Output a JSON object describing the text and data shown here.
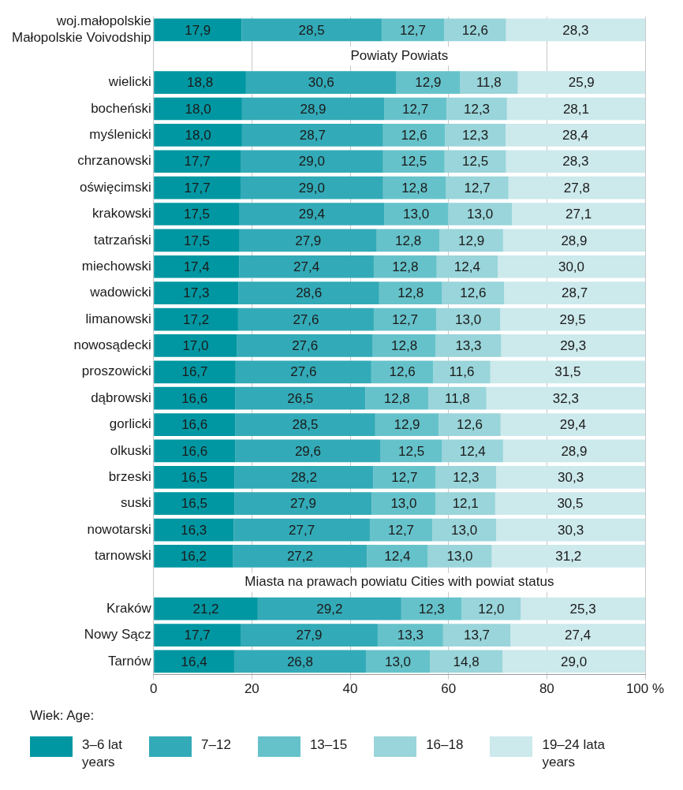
{
  "chart_data": {
    "type": "bar",
    "orientation": "horizontal",
    "stacked": true,
    "categories": [
      "woj.małopolskie\nMałopolskie Voivodship",
      null,
      "wielicki",
      "bocheński",
      "myślenicki",
      "chrzanowski",
      "oświęcimski",
      "krakowski",
      "tatrzański",
      "miechowski",
      "wadowicki",
      "limanowski",
      "nowosądecki",
      "proszowicki",
      "dąbrowski",
      "gorlicki",
      "olkuski",
      "brzeski",
      "suski",
      "nowotarski",
      "tarnowski",
      null,
      "Kraków",
      "Nowy Sącz",
      "Tarnów"
    ],
    "series": [
      {
        "name": "3–6 lat\nyears",
        "color": "#0097a2",
        "values": [
          17.9,
          null,
          18.8,
          18.0,
          18.0,
          17.7,
          17.7,
          17.5,
          17.5,
          17.4,
          17.3,
          17.2,
          17.0,
          16.7,
          16.6,
          16.6,
          16.6,
          16.5,
          16.5,
          16.3,
          16.2,
          null,
          21.2,
          17.7,
          16.4
        ],
        "value_labels": [
          "17,9",
          null,
          "18,8",
          "18,0",
          "18,0",
          "17,7",
          "17,7",
          "17,5",
          "17,5",
          "17,4",
          "17,3",
          "17,2",
          "17,0",
          "16,7",
          "16,6",
          "16,6",
          "16,6",
          "16,5",
          "16,5",
          "16,3",
          "16,2",
          null,
          "21,2",
          "17,7",
          "16,4"
        ]
      },
      {
        "name": "7–12",
        "color": "#33aab7",
        "values": [
          28.5,
          null,
          30.6,
          28.9,
          28.7,
          29.0,
          29.0,
          29.4,
          27.9,
          27.4,
          28.6,
          27.6,
          27.6,
          27.6,
          26.5,
          28.5,
          29.6,
          28.2,
          27.9,
          27.7,
          27.2,
          null,
          29.2,
          27.9,
          26.8
        ],
        "value_labels": [
          "28,5",
          null,
          "30,6",
          "28,9",
          "28,7",
          "29,0",
          "29,0",
          "29,4",
          "27,9",
          "27,4",
          "28,6",
          "27,6",
          "27,6",
          "27,6",
          "26,5",
          "28,5",
          "29,6",
          "28,2",
          "27,9",
          "27,7",
          "27,2",
          null,
          "29,2",
          "27,9",
          "26,8"
        ]
      },
      {
        "name": "13–15",
        "color": "#66c2ca",
        "values": [
          12.7,
          null,
          12.9,
          12.7,
          12.6,
          12.5,
          12.8,
          13.0,
          12.8,
          12.8,
          12.8,
          12.7,
          12.8,
          12.6,
          12.8,
          12.9,
          12.5,
          12.7,
          13.0,
          12.7,
          12.4,
          null,
          12.3,
          13.3,
          13.0
        ],
        "value_labels": [
          "12,7",
          null,
          "12,9",
          "12,7",
          "12,6",
          "12,5",
          "12,8",
          "13,0",
          "12,8",
          "12,8",
          "12,8",
          "12,7",
          "12,8",
          "12,6",
          "12,8",
          "12,9",
          "12,5",
          "12,7",
          "13,0",
          "12,7",
          "12,4",
          null,
          "12,3",
          "13,3",
          "13,0"
        ]
      },
      {
        "name": "16–18",
        "color": "#99d5da",
        "values": [
          12.6,
          null,
          11.8,
          12.3,
          12.3,
          12.5,
          12.7,
          13.0,
          12.9,
          12.4,
          12.6,
          13.0,
          13.3,
          11.6,
          11.8,
          12.6,
          12.4,
          12.3,
          12.1,
          13.0,
          13.0,
          null,
          12.0,
          13.7,
          14.8
        ],
        "value_labels": [
          "12,6",
          null,
          "11,8",
          "12,3",
          "12,3",
          "12,5",
          "12,7",
          "13,0",
          "12,9",
          "12,4",
          "12,6",
          "13,0",
          "13,3",
          "11,6",
          "11,8",
          "12,6",
          "12,4",
          "12,3",
          "12,1",
          "13,0",
          "13,0",
          null,
          "12,0",
          "13,7",
          "14,8"
        ]
      },
      {
        "name": "19–24 lata\nyears",
        "color": "#cce9ec",
        "values": [
          28.3,
          null,
          25.9,
          28.1,
          28.4,
          28.3,
          27.8,
          27.1,
          28.9,
          30.0,
          28.7,
          29.5,
          29.3,
          31.5,
          32.3,
          29.4,
          28.9,
          30.3,
          30.5,
          30.3,
          31.2,
          null,
          25.3,
          27.4,
          29.0
        ],
        "value_labels": [
          "28,3",
          null,
          "25,9",
          "28,1",
          "28,4",
          "28,3",
          "27,8",
          "27,1",
          "28,9",
          "30,0",
          "28,7",
          "29,5",
          "29,3",
          "31,5",
          "32,3",
          "29,4",
          "28,9",
          "30,3",
          "30,5",
          "30,3",
          "31,2",
          null,
          "25,3",
          "27,4",
          "29,0"
        ]
      }
    ],
    "xlim": [
      0,
      100
    ],
    "xticks": [
      0,
      20,
      40,
      60,
      80,
      {
        "value": 100,
        "label": "100 %"
      }
    ],
    "grid": "x",
    "legend": "bottom",
    "legend_title": "Wiek: Age:",
    "annotations": [
      "Powiaty Powiats",
      "Miasta na prawach powiatu Cities with powiat status"
    ]
  }
}
